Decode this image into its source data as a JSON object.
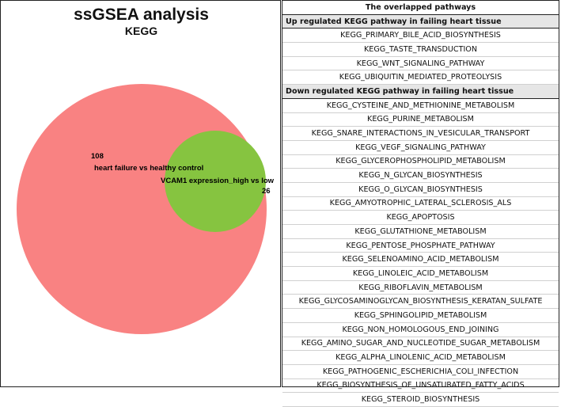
{
  "venn": {
    "title": "ssGSEA analysis",
    "subtitle": "KEGG",
    "sets": [
      {
        "name": "heart failure vs healthy control",
        "count": "108",
        "color": "#f98282"
      },
      {
        "name": "VCAM1 expression_high vs low",
        "count": "26",
        "color": "#86c440"
      }
    ]
  },
  "table": {
    "header": "The overlapped pathways",
    "up_section": "Up regulated KEGG pathway in failing heart tissue",
    "up_items": [
      "KEGG_PRIMARY_BILE_ACID_BIOSYNTHESIS",
      "KEGG_TASTE_TRANSDUCTION",
      "KEGG_WNT_SIGNALING_PATHWAY",
      "KEGG_UBIQUITIN_MEDIATED_PROTEOLYSIS"
    ],
    "down_section": "Down regulated KEGG pathway in failing heart tissue",
    "down_items": [
      "KEGG_CYSTEINE_AND_METHIONINE_METABOLISM",
      "KEGG_PURINE_METABOLISM",
      "KEGG_SNARE_INTERACTIONS_IN_VESICULAR_TRANSPORT",
      "KEGG_VEGF_SIGNALING_PATHWAY",
      "KEGG_GLYCEROPHOSPHOLIPID_METABOLISM",
      "KEGG_N_GLYCAN_BIOSYNTHESIS",
      "KEGG_O_GLYCAN_BIOSYNTHESIS",
      "KEGG_AMYOTROPHIC_LATERAL_SCLEROSIS_ALS",
      "KEGG_APOPTOSIS",
      "KEGG_GLUTATHIONE_METABOLISM",
      "KEGG_PENTOSE_PHOSPHATE_PATHWAY",
      "KEGG_SELENOAMINO_ACID_METABOLISM",
      "KEGG_LINOLEIC_ACID_METABOLISM",
      "KEGG_RIBOFLAVIN_METABOLISM",
      "KEGG_GLYCOSAMINOGLYCAN_BIOSYNTHESIS_KERATAN_SULFATE",
      "KEGG_SPHINGOLIPID_METABOLISM",
      "KEGG_NON_HOMOLOGOUS_END_JOINING",
      "KEGG_AMINO_SUGAR_AND_NUCLEOTIDE_SUGAR_METABOLISM",
      "KEGG_ALPHA_LINOLENIC_ACID_METABOLISM",
      "KEGG_PATHOGENIC_ESCHERICHIA_COLI_INFECTION",
      "KEGG_BIOSYNTHESIS_OF_UNSATURATED_FATTY_ACIDS",
      "KEGG_STEROID_BIOSYNTHESIS"
    ]
  }
}
